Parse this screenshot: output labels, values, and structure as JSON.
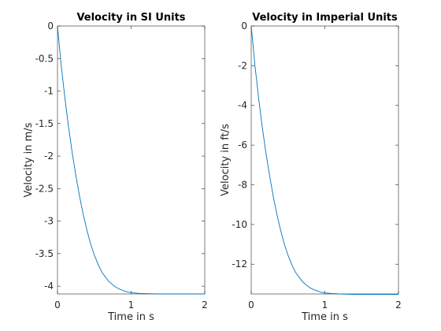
{
  "chart_data": [
    {
      "type": "line",
      "title": "Velocity in SI Units",
      "xlabel": "Time in s",
      "ylabel": "Velocity in m/s",
      "xlim": [
        0,
        2
      ],
      "ylim": [
        -4.12,
        0
      ],
      "xticks": [
        0,
        1,
        2
      ],
      "xtick_labels": [
        "0",
        "1",
        "2"
      ],
      "yticks": [
        0,
        -0.5,
        -1,
        -1.5,
        -2,
        -2.5,
        -3,
        -3.5,
        -4
      ],
      "ytick_labels": [
        "0",
        "-0.5",
        "-1",
        "-1.5",
        "-2",
        "-2.5",
        "-3",
        "-3.5",
        "-4"
      ],
      "grid": false,
      "line_color": "#0072bd",
      "series": [
        {
          "x": [
            0,
            0.05,
            0.1,
            0.15,
            0.2,
            0.25,
            0.3,
            0.35,
            0.4,
            0.45,
            0.5,
            0.55,
            0.6,
            0.65,
            0.7,
            0.75,
            0.8,
            0.85,
            0.9,
            0.95,
            1.0,
            1.1,
            1.2,
            1.3,
            1.4,
            1.6,
            1.8,
            2.0
          ],
          "values": [
            0,
            -0.6,
            -1.1,
            -1.55,
            -1.95,
            -2.3,
            -2.62,
            -2.9,
            -3.14,
            -3.35,
            -3.52,
            -3.66,
            -3.78,
            -3.86,
            -3.93,
            -3.98,
            -4.02,
            -4.05,
            -4.07,
            -4.09,
            -4.1,
            -4.11,
            -4.115,
            -4.118,
            -4.12,
            -4.12,
            -4.12,
            -4.12
          ]
        }
      ]
    },
    {
      "type": "line",
      "title": "Velocity in Imperial Units",
      "xlabel": "Time in s",
      "ylabel": "Velocity in ft/s",
      "xlim": [
        0,
        2
      ],
      "ylim": [
        -13.5,
        0
      ],
      "xticks": [
        0,
        1,
        2
      ],
      "xtick_labels": [
        "0",
        "1",
        "2"
      ],
      "yticks": [
        0,
        -2,
        -4,
        -6,
        -8,
        -10,
        -12
      ],
      "ytick_labels": [
        "0",
        "-2",
        "-4",
        "-6",
        "-8",
        "-10",
        "-12"
      ],
      "grid": false,
      "line_color": "#0072bd",
      "series": [
        {
          "x": [
            0,
            0.05,
            0.1,
            0.15,
            0.2,
            0.25,
            0.3,
            0.35,
            0.4,
            0.45,
            0.5,
            0.55,
            0.6,
            0.65,
            0.7,
            0.75,
            0.8,
            0.85,
            0.9,
            0.95,
            1.0,
            1.1,
            1.2,
            1.3,
            1.4,
            1.6,
            1.8,
            2.0
          ],
          "values": [
            0,
            -1.97,
            -3.61,
            -5.09,
            -6.4,
            -7.55,
            -8.6,
            -9.51,
            -10.3,
            -10.99,
            -11.55,
            -12.01,
            -12.4,
            -12.66,
            -12.89,
            -13.06,
            -13.19,
            -13.29,
            -13.35,
            -13.42,
            -13.45,
            -13.48,
            -13.5,
            -13.51,
            -13.52,
            -13.52,
            -13.52,
            -13.52
          ]
        }
      ]
    }
  ]
}
